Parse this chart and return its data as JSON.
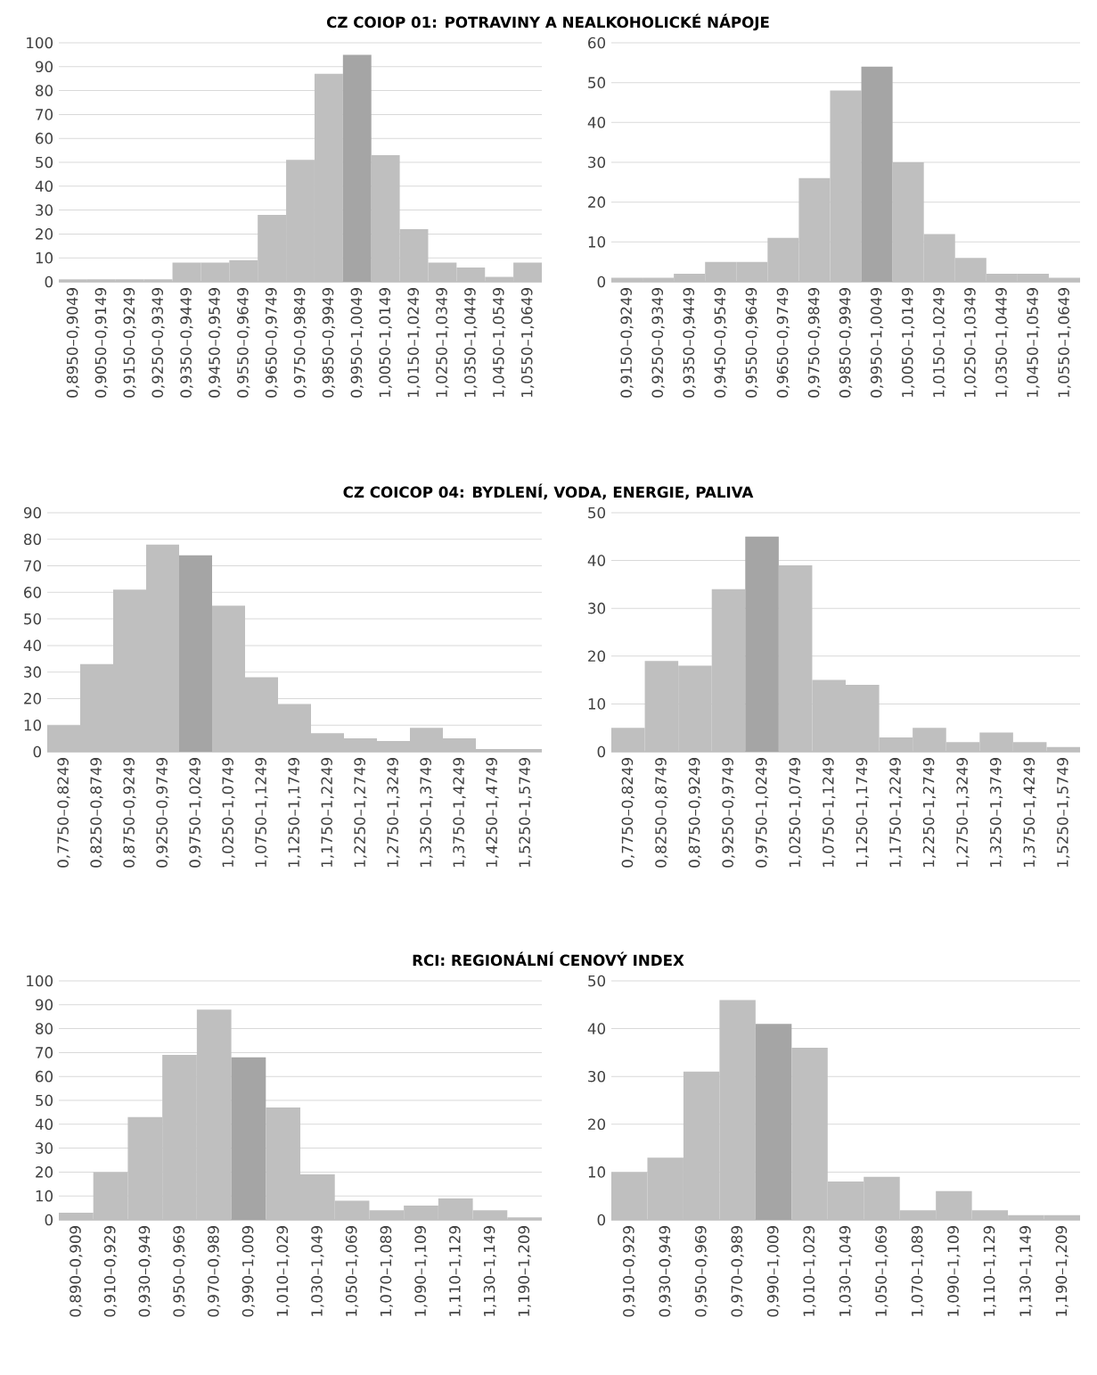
{
  "chart_data": [
    {
      "type": "bar",
      "title": "CZ COIOP 01: POTRAVINY A NEALKOHOLICKÉ NÁPOJE",
      "categories": [
        "0,8950–0,9049",
        "0,9050–0,9149",
        "0,9150–0,9249",
        "0,9250–0,9349",
        "0,9350–0,9449",
        "0,9450–0,9549",
        "0,9550–0,9649",
        "0,9650–0,9749",
        "0,9750–0,9849",
        "0,9850–0,9949",
        "0,9950–1,0049",
        "1,0050–1,0149",
        "1,0150–1,0249",
        "1,0250–1,0349",
        "1,0350–1,0449",
        "1,0450–1,0549",
        "1,0550–1,0649"
      ],
      "values": [
        1,
        1,
        1,
        1,
        8,
        8,
        9,
        28,
        51,
        87,
        95,
        53,
        22,
        8,
        6,
        2,
        8
      ],
      "colors": [
        "#bfbfbf",
        "#bfbfbf",
        "#bfbfbf",
        "#bfbfbf",
        "#bfbfbf",
        "#bfbfbf",
        "#bfbfbf",
        "#bfbfbf",
        "#bfbfbf",
        "#bfbfbf",
        "#a5a5a5",
        "#bfbfbf",
        "#bfbfbf",
        "#bfbfbf",
        "#bfbfbf",
        "#bfbfbf",
        "#bfbfbf"
      ],
      "ylim": [
        0,
        100
      ],
      "yticks": [
        0,
        10,
        20,
        30,
        40,
        50,
        60,
        70,
        80,
        90,
        100
      ],
      "grid": "y"
    },
    {
      "type": "bar",
      "categories": [
        "0,9150–0,9249",
        "0,9250–0,9349",
        "0,9350–0,9449",
        "0,9450–0,9549",
        "0,9550–0,9649",
        "0,9650–0,9749",
        "0,9750–0,9849",
        "0,9850–0,9949",
        "0,9950–1,0049",
        "1,0050–1,0149",
        "1,0150–1,0249",
        "1,0250–1,0349",
        "1,0350–1,0449",
        "1,0450–1,0549",
        "1,0550–1,0649"
      ],
      "values": [
        1,
        1,
        2,
        5,
        5,
        11,
        26,
        48,
        54,
        30,
        12,
        6,
        2,
        2,
        1
      ],
      "colors": [
        "#bfbfbf",
        "#bfbfbf",
        "#bfbfbf",
        "#bfbfbf",
        "#bfbfbf",
        "#bfbfbf",
        "#bfbfbf",
        "#bfbfbf",
        "#a5a5a5",
        "#bfbfbf",
        "#bfbfbf",
        "#bfbfbf",
        "#bfbfbf",
        "#bfbfbf",
        "#bfbfbf"
      ],
      "ylim": [
        0,
        60
      ],
      "yticks": [
        0,
        10,
        20,
        30,
        40,
        50,
        60
      ],
      "grid": "y"
    },
    {
      "type": "bar",
      "title": "CZ COICOP 04: BYDLENÍ, VODA, ENERGIE, PALIVA",
      "categories": [
        "0,7750–0,8249",
        "0,8250–0,8749",
        "0,8750–0,9249",
        "0,9250–0,9749",
        "0,9750–1,0249",
        "1,0250–1,0749",
        "1,0750–1,1249",
        "1,1250–1,1749",
        "1,1750–1,2249",
        "1,2250–1,2749",
        "1,2750–1,3249",
        "1,3250–1,3749",
        "1,3750–1,4249",
        "1,4250–1,4749",
        "1,5250–1,5749"
      ],
      "values": [
        10,
        33,
        61,
        78,
        74,
        55,
        28,
        18,
        7,
        5,
        4,
        9,
        5,
        1,
        1
      ],
      "colors": [
        "#bfbfbf",
        "#bfbfbf",
        "#bfbfbf",
        "#bfbfbf",
        "#a5a5a5",
        "#bfbfbf",
        "#bfbfbf",
        "#bfbfbf",
        "#bfbfbf",
        "#bfbfbf",
        "#bfbfbf",
        "#bfbfbf",
        "#bfbfbf",
        "#bfbfbf",
        "#bfbfbf"
      ],
      "ylim": [
        0,
        90
      ],
      "yticks": [
        0,
        10,
        20,
        30,
        40,
        50,
        60,
        70,
        80,
        90
      ],
      "grid": "y"
    },
    {
      "type": "bar",
      "categories": [
        "0,7750–0,8249",
        "0,8250–0,8749",
        "0,8750–0,9249",
        "0,9250–0,9749",
        "0,9750–1,0249",
        "1,0250–1,0749",
        "1,0750–1,1249",
        "1,1250–1,1749",
        "1,1750–1,2249",
        "1,2250–1,2749",
        "1,2750–1,3249",
        "1,3250–1,3749",
        "1,3750–1,4249",
        "1,5250–1,5749"
      ],
      "values": [
        5,
        19,
        18,
        34,
        45,
        39,
        15,
        14,
        3,
        5,
        2,
        4,
        2,
        1
      ],
      "colors": [
        "#bfbfbf",
        "#bfbfbf",
        "#bfbfbf",
        "#bfbfbf",
        "#a5a5a5",
        "#bfbfbf",
        "#bfbfbf",
        "#bfbfbf",
        "#bfbfbf",
        "#bfbfbf",
        "#bfbfbf",
        "#bfbfbf",
        "#bfbfbf",
        "#bfbfbf"
      ],
      "ylim": [
        0,
        50
      ],
      "yticks": [
        0,
        10,
        20,
        30,
        40,
        50
      ],
      "grid": "y"
    },
    {
      "type": "bar",
      "title": "RCI: REGIONÁLNÍ CENOVÝ INDEX",
      "categories": [
        "0,890–0,909",
        "0,910–0,929",
        "0,930–0,949",
        "0,950–0,969",
        "0,970–0,989",
        "0,990–1,009",
        "1,010–1,029",
        "1,030–1,049",
        "1,050–1,069",
        "1,070–1,089",
        "1,090–1,109",
        "1,110–1,129",
        "1,130–1,149",
        "1,190–1,209"
      ],
      "values": [
        3,
        20,
        43,
        69,
        88,
        68,
        47,
        19,
        8,
        4,
        6,
        9,
        4,
        1
      ],
      "colors": [
        "#bfbfbf",
        "#bfbfbf",
        "#bfbfbf",
        "#bfbfbf",
        "#bfbfbf",
        "#a5a5a5",
        "#bfbfbf",
        "#bfbfbf",
        "#bfbfbf",
        "#bfbfbf",
        "#bfbfbf",
        "#bfbfbf",
        "#bfbfbf",
        "#bfbfbf"
      ],
      "ylim": [
        0,
        100
      ],
      "yticks": [
        0,
        10,
        20,
        30,
        40,
        50,
        60,
        70,
        80,
        90,
        100
      ],
      "grid": "y"
    },
    {
      "type": "bar",
      "categories": [
        "0,910–0,929",
        "0,930–0,949",
        "0,950–0,969",
        "0,970–0,989",
        "0,990–1,009",
        "1,010–1,029",
        "1,030–1,049",
        "1,050–1,069",
        "1,070–1,089",
        "1,090–1,109",
        "1,110–1,129",
        "1,130–1,149",
        "1,190–1,209"
      ],
      "values": [
        10,
        13,
        31,
        46,
        41,
        36,
        8,
        9,
        2,
        6,
        2,
        1,
        1
      ],
      "colors": [
        "#bfbfbf",
        "#bfbfbf",
        "#bfbfbf",
        "#bfbfbf",
        "#a5a5a5",
        "#bfbfbf",
        "#bfbfbf",
        "#bfbfbf",
        "#bfbfbf",
        "#bfbfbf",
        "#bfbfbf",
        "#bfbfbf",
        "#bfbfbf"
      ],
      "ylim": [
        0,
        50
      ],
      "yticks": [
        0,
        10,
        20,
        30,
        40,
        50
      ],
      "grid": "y"
    }
  ]
}
